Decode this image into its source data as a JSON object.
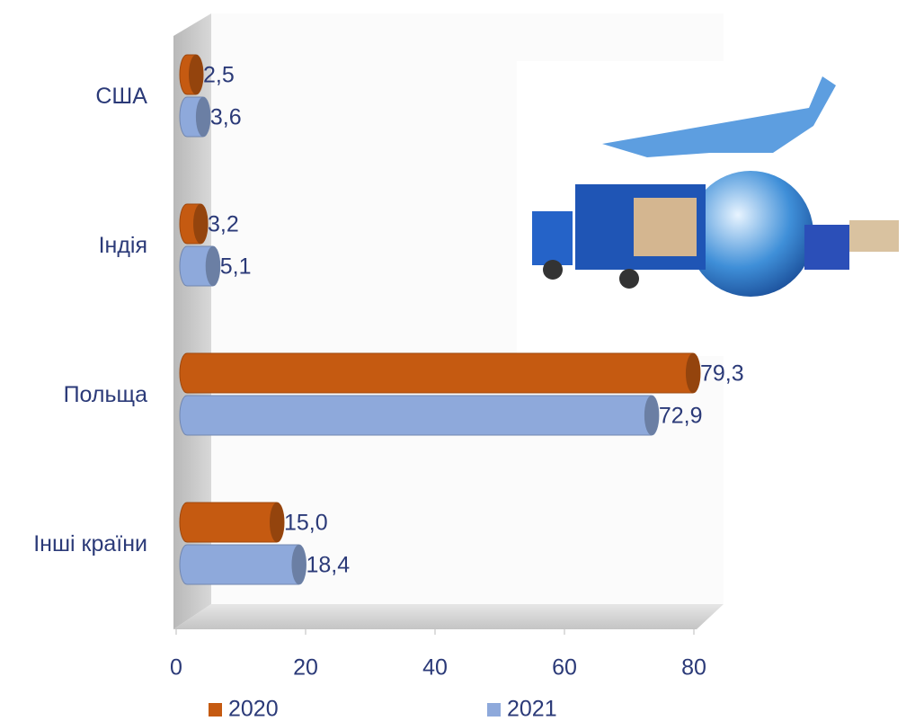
{
  "chart_data": {
    "type": "bar",
    "orientation": "horizontal",
    "categories": [
      "США",
      "Індія",
      "Польща",
      "Інші країни"
    ],
    "series": [
      {
        "name": "2020",
        "color": "#c55a11",
        "values": [
          2.5,
          3.2,
          79.3,
          15.0
        ],
        "value_labels": [
          "2,5",
          "3,2",
          "79,3",
          "15,0"
        ]
      },
      {
        "name": "2021",
        "color": "#8ea9db",
        "values": [
          3.6,
          5.1,
          72.9,
          18.4
        ],
        "value_labels": [
          "3,6",
          "5,1",
          "72,9",
          "18,4"
        ]
      }
    ],
    "xlim": [
      0,
      80
    ],
    "xticks": [
      0,
      20,
      40,
      60,
      80
    ],
    "legend": "bottom"
  }
}
